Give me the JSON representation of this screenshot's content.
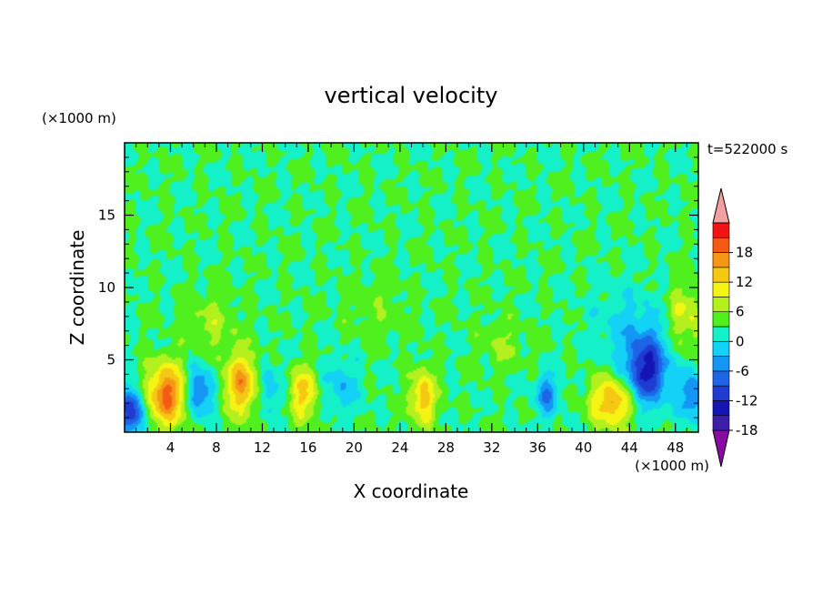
{
  "chart_data": {
    "type": "heatmap",
    "title": "vertical velocity",
    "xlabel": "X coordinate",
    "ylabel": "Z coordinate",
    "x_unit_label": "(×1000 m)",
    "y_unit_label": "(×1000 m)",
    "time_label": "t=522000 s",
    "xlim": [
      0,
      50
    ],
    "ylim": [
      0,
      20
    ],
    "x_ticks": [
      4,
      8,
      12,
      16,
      20,
      24,
      28,
      32,
      36,
      40,
      44,
      48
    ],
    "y_ticks": [
      5,
      10,
      15
    ],
    "x_minor_ticks": [
      1,
      2,
      3,
      5,
      6,
      7,
      9,
      10,
      11,
      13,
      14,
      15,
      17,
      18,
      19,
      21,
      22,
      23,
      25,
      26,
      27,
      29,
      30,
      31,
      33,
      34,
      35,
      37,
      38,
      39,
      41,
      42,
      43,
      45,
      46,
      47,
      49
    ],
    "y_minor_ticks": [
      1,
      2,
      3,
      4,
      6,
      7,
      8,
      9,
      11,
      12,
      13,
      14,
      16,
      17,
      18,
      19
    ],
    "levels": [
      -21,
      -18,
      -15,
      -12,
      -9,
      -6,
      -3,
      0,
      3,
      6,
      9,
      12,
      15,
      18,
      21
    ],
    "colorbar_labels": [
      18,
      12,
      6,
      0,
      -6,
      -12,
      -18
    ],
    "colors": [
      "#8a0aa4",
      "#3c1ea8",
      "#1414b4",
      "#1e3cd2",
      "#1e64e6",
      "#1496f5",
      "#14d2f5",
      "#14f0c8",
      "#50f01e",
      "#b4f01e",
      "#f5f514",
      "#f5c814",
      "#f59614",
      "#f55a14",
      "#f01414",
      "#f5a0a0"
    ],
    "features": [
      {
        "x": 3.7,
        "z": 2.6,
        "sx": 1.3,
        "sz": 1.5,
        "amp": 16
      },
      {
        "x": 10.2,
        "z": 3.3,
        "sx": 1.1,
        "sz": 1.5,
        "amp": 13
      },
      {
        "x": 15.6,
        "z": 2.7,
        "sx": 0.9,
        "sz": 1.3,
        "amp": 10
      },
      {
        "x": 26.0,
        "z": 2.4,
        "sx": 0.8,
        "sz": 1.3,
        "amp": 11
      },
      {
        "x": 42.5,
        "z": 2.1,
        "sx": 1.3,
        "sz": 1.2,
        "amp": 13
      },
      {
        "x": 48.8,
        "z": 8.0,
        "sx": 1.1,
        "sz": 1.6,
        "amp": 7
      },
      {
        "x": 0.6,
        "z": 1.4,
        "sx": 0.8,
        "sz": 1.2,
        "amp": -15
      },
      {
        "x": 6.5,
        "z": 2.8,
        "sx": 0.9,
        "sz": 1.2,
        "amp": -11
      },
      {
        "x": 12.5,
        "z": 3.0,
        "sx": 0.8,
        "sz": 1.3,
        "amp": -6
      },
      {
        "x": 18.8,
        "z": 3.2,
        "sx": 1.2,
        "sz": 1.2,
        "amp": -5
      },
      {
        "x": 36.8,
        "z": 2.6,
        "sx": 0.7,
        "sz": 1.0,
        "amp": -9
      },
      {
        "x": 45.5,
        "z": 4.2,
        "sx": 1.3,
        "sz": 1.6,
        "amp": -16
      },
      {
        "x": 44.3,
        "z": 7.2,
        "sx": 2.4,
        "sz": 1.8,
        "amp": -4
      },
      {
        "x": 49.5,
        "z": 2.5,
        "sx": 0.9,
        "sz": 1.2,
        "amp": -9
      },
      {
        "x": 7.5,
        "z": 7.5,
        "sx": 1.5,
        "sz": 1.4,
        "amp": 4
      },
      {
        "x": 33.0,
        "z": 6.0,
        "sx": 1.4,
        "sz": 1.2,
        "amp": 3
      },
      {
        "x": 22.0,
        "z": 8.5,
        "sx": 2.0,
        "sz": 1.5,
        "amp": 2
      }
    ],
    "grid": false,
    "colorbar_placement": "right"
  }
}
